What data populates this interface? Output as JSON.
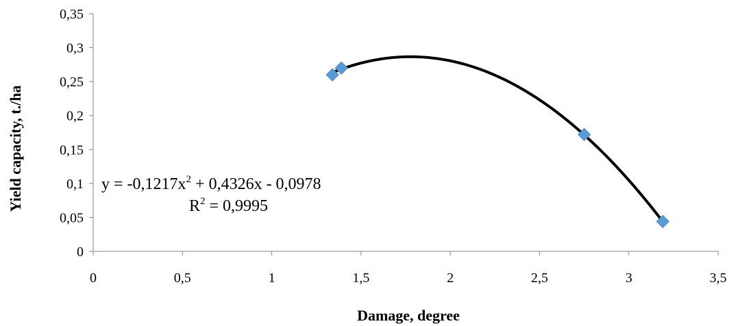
{
  "chart_data": {
    "type": "scatter",
    "title": "",
    "xlabel": "Damage, degree",
    "ylabel": "Yield capacity, t./ha",
    "xlim": [
      0,
      3.5
    ],
    "ylim": [
      0,
      0.35
    ],
    "x_ticks": [
      "0",
      "0,5",
      "1",
      "1,5",
      "2",
      "2,5",
      "3",
      "3,5"
    ],
    "x_tick_values": [
      0,
      0.5,
      1,
      1.5,
      2,
      2.5,
      3,
      3.5
    ],
    "y_ticks": [
      "0",
      "0,05",
      "0,1",
      "0,15",
      "0,2",
      "0,25",
      "0,3",
      "0,35"
    ],
    "y_tick_values": [
      0,
      0.05,
      0.1,
      0.15,
      0.2,
      0.25,
      0.3,
      0.35
    ],
    "grid": false,
    "series": [
      {
        "type": "scatter",
        "marker": "diamond",
        "color": "#5b9bd5",
        "points": [
          {
            "x": 1.34,
            "y": 0.26
          },
          {
            "x": 1.39,
            "y": 0.27
          },
          {
            "x": 2.75,
            "y": 0.172
          },
          {
            "x": 3.19,
            "y": 0.044
          }
        ]
      },
      {
        "type": "trendline",
        "kind": "polynomial-2",
        "color": "#000000",
        "coefficients": {
          "a": -0.1217,
          "b": 0.4326,
          "c": -0.0978
        },
        "x_range": [
          1.34,
          3.19
        ]
      }
    ],
    "annotations": {
      "equation_prefix": "y = -0,1217x",
      "equation_exp": "2",
      "equation_suffix": " + 0,4326x - 0,0978",
      "r2_prefix": "R",
      "r2_exp": "2",
      "r2_suffix": " = 0,9995"
    }
  }
}
